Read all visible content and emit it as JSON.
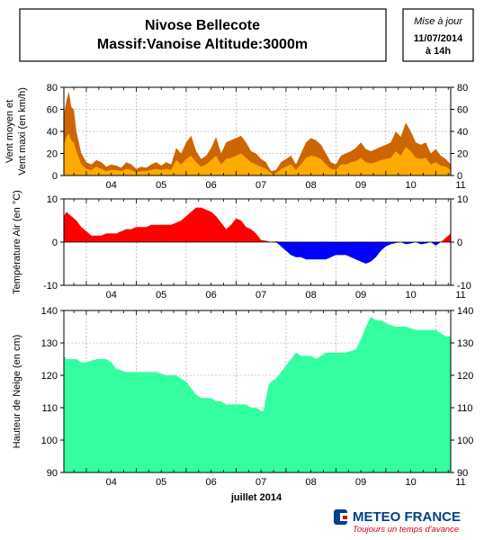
{
  "header": {
    "title_line1": "Nivose Bellecote",
    "title_line2": "Massif:Vanoise Altitude:3000m",
    "update_label": "Mise à jour",
    "update_date": "11/07/2014",
    "update_time": "à 14h"
  },
  "footer": {
    "x_axis_title": "juillet 2014",
    "brand_name": "METEO FRANCE",
    "brand_slogan": "Toujours un temps d'avance"
  },
  "colors": {
    "wind_mean": "#FFAA00",
    "wind_max": "#CC6600",
    "temp_positive": "#FF0000",
    "temp_negative": "#0000FF",
    "snow": "#33FFA0",
    "brand_blue": "#003F8A",
    "brand_red": "#D0021B"
  },
  "chart_data": [
    {
      "type": "area",
      "ylabel_line1": "Vent moyen et",
      "ylabel_line2": "Vent maxi (en km/h)",
      "ylim": [
        0,
        80
      ],
      "yticks": [
        0,
        20,
        40,
        60,
        80
      ],
      "x_ticks": [
        "04",
        "05",
        "06",
        "07",
        "08",
        "09",
        "10",
        "11"
      ],
      "grid": true,
      "series": [
        {
          "key": "wind_max",
          "x": [
            3.55,
            3.6,
            3.65,
            3.7,
            3.75,
            3.8,
            3.85,
            3.9,
            4.0,
            4.1,
            4.2,
            4.3,
            4.4,
            4.5,
            4.6,
            4.7,
            4.8,
            4.9,
            5.0,
            5.1,
            5.2,
            5.3,
            5.4,
            5.5,
            5.6,
            5.7,
            5.8,
            5.9,
            6.0,
            6.1,
            6.2,
            6.3,
            6.4,
            6.5,
            6.6,
            6.7,
            6.8,
            6.9,
            7.0,
            7.1,
            7.2,
            7.3,
            7.4,
            7.5,
            7.6,
            7.7,
            7.8,
            7.9,
            8.0,
            8.1,
            8.2,
            8.3,
            8.4,
            8.5,
            8.6,
            8.7,
            8.8,
            8.9,
            9.0,
            9.1,
            9.2,
            9.3,
            9.4,
            9.5,
            9.6,
            9.7,
            9.8,
            9.9,
            10.0,
            10.1,
            10.2,
            10.3,
            10.4,
            10.5,
            10.6,
            10.7,
            10.8,
            10.9,
            11.0,
            11.1,
            11.2,
            11.3
          ],
          "values": [
            55,
            68,
            76,
            62,
            60,
            40,
            30,
            20,
            12,
            10,
            14,
            12,
            8,
            10,
            9,
            7,
            12,
            10,
            6,
            8,
            7,
            10,
            12,
            9,
            12,
            10,
            25,
            20,
            30,
            36,
            22,
            15,
            18,
            25,
            35,
            20,
            30,
            32,
            34,
            36,
            30,
            22,
            20,
            15,
            12,
            4,
            5,
            12,
            15,
            18,
            10,
            20,
            30,
            34,
            32,
            28,
            20,
            12,
            10,
            18,
            20,
            22,
            25,
            30,
            24,
            22,
            24,
            26,
            28,
            30,
            40,
            35,
            48,
            40,
            30,
            28,
            30,
            20,
            24,
            18,
            15,
            10
          ]
        },
        {
          "key": "wind_mean",
          "x": [
            3.55,
            3.6,
            3.65,
            3.7,
            3.75,
            3.8,
            3.85,
            3.9,
            4.0,
            4.1,
            4.2,
            4.3,
            4.4,
            4.5,
            4.6,
            4.7,
            4.8,
            4.9,
            5.0,
            5.1,
            5.2,
            5.3,
            5.4,
            5.5,
            5.6,
            5.7,
            5.8,
            5.9,
            6.0,
            6.1,
            6.2,
            6.3,
            6.4,
            6.5,
            6.6,
            6.7,
            6.8,
            6.9,
            7.0,
            7.1,
            7.2,
            7.3,
            7.4,
            7.5,
            7.6,
            7.7,
            7.8,
            7.9,
            8.0,
            8.1,
            8.2,
            8.3,
            8.4,
            8.5,
            8.6,
            8.7,
            8.8,
            8.9,
            9.0,
            9.1,
            9.2,
            9.3,
            9.4,
            9.5,
            9.6,
            9.7,
            9.8,
            9.9,
            10.0,
            10.1,
            10.2,
            10.3,
            10.4,
            10.5,
            10.6,
            10.7,
            10.8,
            10.9,
            11.0,
            11.1,
            11.2,
            11.3
          ],
          "values": [
            28,
            35,
            38,
            32,
            30,
            22,
            16,
            10,
            6,
            5,
            8,
            6,
            4,
            5,
            5,
            4,
            6,
            5,
            3,
            4,
            4,
            5,
            6,
            5,
            6,
            5,
            14,
            10,
            15,
            18,
            12,
            8,
            10,
            14,
            18,
            10,
            15,
            16,
            18,
            20,
            16,
            12,
            10,
            8,
            6,
            2,
            2,
            6,
            8,
            10,
            5,
            10,
            16,
            18,
            17,
            15,
            10,
            6,
            5,
            10,
            10,
            12,
            13,
            16,
            12,
            11,
            12,
            14,
            15,
            16,
            22,
            18,
            26,
            22,
            16,
            15,
            16,
            10,
            12,
            9,
            8,
            5
          ]
        }
      ]
    },
    {
      "type": "area",
      "ylabel": "Température Air (en °C)",
      "ylim": [
        -10,
        10
      ],
      "yticks": [
        -10,
        0,
        10
      ],
      "x_ticks": [
        "04",
        "05",
        "06",
        "07",
        "08",
        "09",
        "10",
        "11"
      ],
      "grid": true,
      "series": [
        {
          "key": "temperature",
          "x": [
            3.55,
            3.6,
            3.7,
            3.8,
            3.9,
            4.0,
            4.1,
            4.2,
            4.3,
            4.4,
            4.5,
            4.6,
            4.7,
            4.8,
            4.9,
            5.0,
            5.1,
            5.2,
            5.3,
            5.4,
            5.5,
            5.6,
            5.7,
            5.8,
            5.9,
            6.0,
            6.1,
            6.2,
            6.3,
            6.4,
            6.5,
            6.6,
            6.7,
            6.8,
            6.9,
            7.0,
            7.1,
            7.2,
            7.3,
            7.4,
            7.5,
            7.6,
            7.7,
            7.8,
            7.9,
            8.0,
            8.1,
            8.2,
            8.3,
            8.4,
            8.5,
            8.6,
            8.7,
            8.8,
            8.9,
            9.0,
            9.1,
            9.2,
            9.3,
            9.4,
            9.5,
            9.6,
            9.7,
            9.8,
            9.9,
            10.0,
            10.1,
            10.2,
            10.3,
            10.4,
            10.5,
            10.6,
            10.7,
            10.8,
            10.9,
            11.0,
            11.1,
            11.2,
            11.3
          ],
          "values": [
            6,
            7,
            6,
            5,
            3.5,
            2.5,
            1.5,
            1.5,
            1.5,
            2,
            2,
            2,
            2.5,
            3,
            3,
            3.5,
            3.5,
            3.5,
            4,
            4,
            4,
            4,
            4,
            4.5,
            5,
            6,
            7,
            8,
            8,
            7.5,
            7,
            6,
            4.5,
            3,
            4,
            5.5,
            5,
            3.5,
            3,
            2,
            0.5,
            0.3,
            0,
            0.2,
            -1,
            -2,
            -3,
            -3.5,
            -3.5,
            -4,
            -4,
            -4,
            -4,
            -4,
            -3.5,
            -3,
            -3,
            -3,
            -3.5,
            -4,
            -4.5,
            -5,
            -4.5,
            -3.5,
            -2,
            -1,
            -0.5,
            -0.2,
            0,
            -0.5,
            -0.3,
            0,
            -0.5,
            -0.3,
            0,
            -0.8,
            0,
            1,
            2
          ]
        }
      ]
    },
    {
      "type": "area",
      "ylabel": "Hauteur de Neige (en cm)",
      "ylim": [
        90,
        140
      ],
      "yticks": [
        90,
        100,
        110,
        120,
        130,
        140
      ],
      "x_ticks": [
        "04",
        "05",
        "06",
        "07",
        "08",
        "09",
        "10",
        "11"
      ],
      "xlabel": "juillet 2014",
      "grid": true,
      "series": [
        {
          "key": "snow_depth",
          "x": [
            3.55,
            3.6,
            3.7,
            3.8,
            3.9,
            4.0,
            4.2,
            4.4,
            4.5,
            4.6,
            4.8,
            5.0,
            5.2,
            5.4,
            5.6,
            5.8,
            5.9,
            6.0,
            6.05,
            6.1,
            6.15,
            6.2,
            6.3,
            6.4,
            6.5,
            6.6,
            6.7,
            6.8,
            6.9,
            7.0,
            7.1,
            7.2,
            7.3,
            7.4,
            7.5,
            7.55,
            7.6,
            7.65,
            7.7,
            7.8,
            7.9,
            8.0,
            8.1,
            8.2,
            8.3,
            8.4,
            8.5,
            8.6,
            8.7,
            8.8,
            8.9,
            9.0,
            9.2,
            9.4,
            9.5,
            9.6,
            9.7,
            9.8,
            9.9,
            10.0,
            10.2,
            10.4,
            10.6,
            10.8,
            11.0,
            11.1,
            11.2,
            11.3
          ],
          "values": [
            126,
            125,
            125,
            125,
            124,
            124,
            125,
            125,
            124,
            122,
            121,
            121,
            121,
            121,
            120,
            120,
            119,
            118,
            117,
            116,
            115,
            114,
            113,
            113,
            113,
            112,
            112,
            111,
            111,
            111,
            111,
            111,
            110,
            110,
            109,
            109,
            113,
            117,
            118,
            119,
            121,
            123,
            125,
            127,
            126,
            126,
            126,
            125,
            126,
            127,
            127,
            127,
            127,
            128,
            131,
            135,
            138,
            137,
            137,
            136,
            135,
            135,
            134,
            134,
            134,
            133,
            132,
            132
          ]
        }
      ]
    }
  ]
}
